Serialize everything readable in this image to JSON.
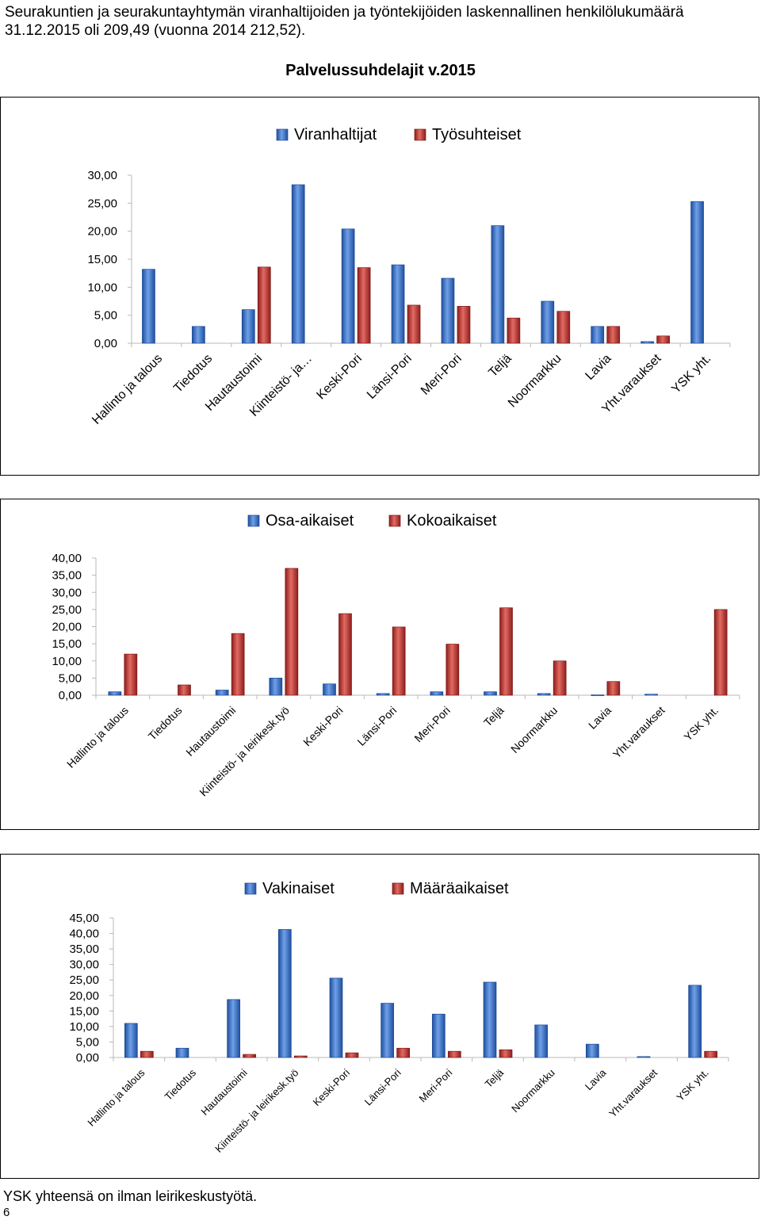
{
  "page": {
    "intro": "Seurakuntien ja seurakuntayhtymän viranhaltijoiden ja työntekijöiden laskennallinen henkilölukumäärä 31.12.2015 oli 209,49 (vuonna 2014   212,52).",
    "subtitle": "Palvelussuhdelajit v.2015",
    "footnote": "YSK yhteensä on ilman leirikeskustyötä.",
    "page_number": "6"
  },
  "colors": {
    "series_1": "#3a6fc4",
    "series_2": "#c0302c",
    "axis": "#b8b8b8"
  },
  "chart_data": [
    {
      "type": "bar",
      "categories": [
        "Hallinto ja talous",
        "Tiedotus",
        "Hautaustoimi",
        "Kiinteistö- ja…",
        "Keski-Pori",
        "Länsi-Pori",
        "Meri-Pori",
        "Teljä",
        "Noormarkku",
        "Lavia",
        "Yht.varaukset",
        "YSK yht."
      ],
      "series": [
        {
          "name": "Viranhaltijat",
          "values": [
            13.2,
            3.0,
            6.0,
            28.3,
            20.4,
            14.0,
            11.6,
            21.0,
            7.5,
            3.0,
            0.3,
            25.3
          ]
        },
        {
          "name": "Työsuhteiset",
          "values": [
            0,
            0,
            13.6,
            0,
            13.5,
            6.8,
            6.6,
            4.5,
            5.7,
            3.0,
            1.3,
            0
          ]
        }
      ],
      "ylim": [
        0,
        30
      ],
      "yticks": [
        "0,00",
        "5,00",
        "10,00",
        "15,00",
        "20,00",
        "25,00",
        "30,00"
      ],
      "legend_position": "top-center",
      "grid": false
    },
    {
      "type": "bar",
      "categories": [
        "Hallinto ja talous",
        "Tiedotus",
        "Hautaustoimi",
        "Kiinteistö- ja leirikesk.työ",
        "Keski-Pori",
        "Länsi-Pori",
        "Meri-Pori",
        "Teljä",
        "Noormarkku",
        "Lavia",
        "Yht.varaukset",
        "YSK yht."
      ],
      "series": [
        {
          "name": "Osa-aikaiset",
          "values": [
            1.0,
            0,
            1.5,
            5.0,
            3.3,
            0.5,
            1.0,
            1.0,
            0.5,
            0.1,
            0.3,
            0
          ]
        },
        {
          "name": "Kokoaikaiset",
          "values": [
            12.0,
            3.0,
            18.0,
            37.0,
            23.8,
            19.9,
            14.9,
            25.5,
            10.0,
            4.0,
            0,
            25.0
          ]
        }
      ],
      "ylim": [
        0,
        40
      ],
      "yticks": [
        "0,00",
        "5,00",
        "10,00",
        "15,00",
        "20,00",
        "25,00",
        "30,00",
        "35,00",
        "40,00"
      ],
      "legend_position": "top-center",
      "grid": false
    },
    {
      "type": "bar",
      "categories": [
        "Hallinto ja talous",
        "Tiedotus",
        "Hautaustoimi",
        "Kiinteistö- ja leirikesk.työ",
        "Keski-Pori",
        "Länsi-Pori",
        "Meri-Pori",
        "Teljä",
        "Noormarkku",
        "Lavia",
        "Yht.varaukset",
        "YSK yht."
      ],
      "series": [
        {
          "name": "Vakinaiset",
          "values": [
            11.0,
            3.0,
            18.7,
            41.3,
            25.6,
            17.5,
            14.0,
            24.3,
            10.5,
            4.3,
            0.3,
            23.3
          ]
        },
        {
          "name": "Määräaikaiset",
          "values": [
            2.0,
            0,
            1.0,
            0.5,
            1.5,
            3.0,
            2.0,
            2.5,
            0,
            0,
            0,
            2.0
          ]
        }
      ],
      "ylim": [
        0,
        45
      ],
      "yticks": [
        "0,00",
        "5,00",
        "10,00",
        "15,00",
        "20,00",
        "25,00",
        "30,00",
        "35,00",
        "40,00",
        "45,00"
      ],
      "legend_position": "top-center",
      "grid": false
    }
  ]
}
